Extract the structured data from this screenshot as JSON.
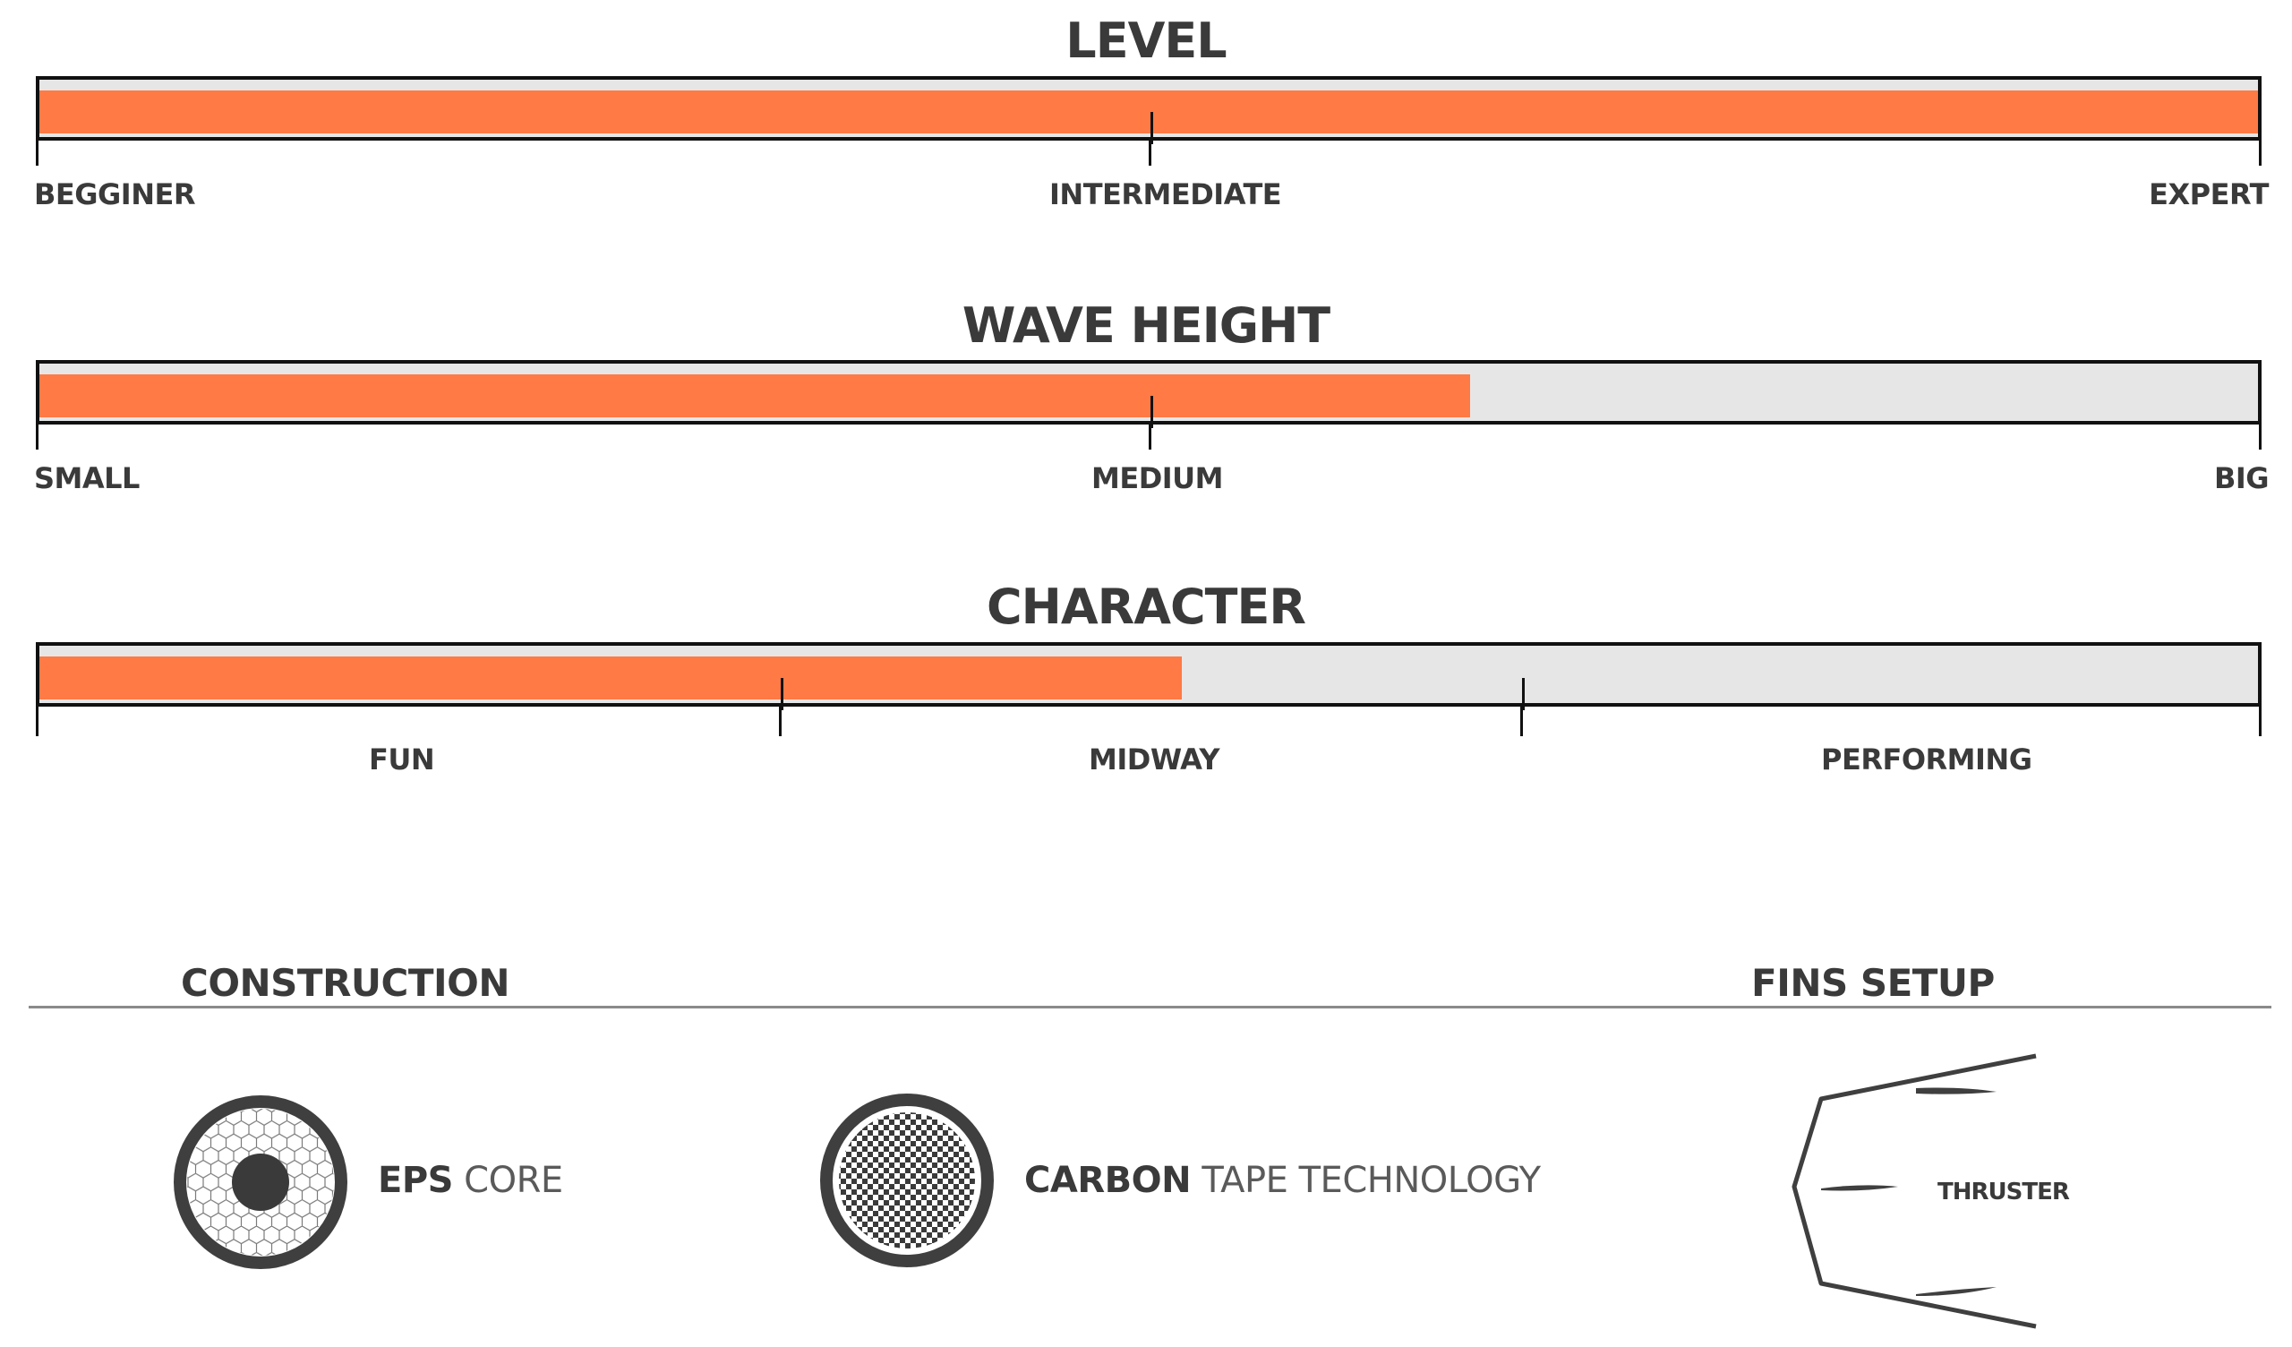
{
  "level": {
    "title": "LEVEL",
    "value": 1.0,
    "labels": [
      "BEGGINER",
      "INTERMEDIATE",
      "EXPERT"
    ]
  },
  "wave_height": {
    "title": "WAVE HEIGHT",
    "value": 0.645,
    "labels": [
      "SMALL",
      "MEDIUM",
      "BIG"
    ]
  },
  "character": {
    "title": "CHARACTER",
    "value": 0.515,
    "labels": [
      "FUN",
      "MIDWAY",
      "PERFORMING"
    ]
  },
  "construction": {
    "heading": "CONSTRUCTION",
    "items": [
      {
        "bold": "EPS",
        "light": "CORE",
        "icon": "eps-core-icon"
      },
      {
        "bold": "CARBON",
        "light": "TAPE TECHNOLOGY",
        "icon": "carbon-tape-icon"
      }
    ]
  },
  "fins": {
    "heading": "FINS SETUP",
    "setup": "THRUSTER",
    "icon": "thruster-fins-icon"
  },
  "colors": {
    "fill": "#ff7a45",
    "track": "#e6e6e6",
    "text": "#3a3a3a"
  }
}
